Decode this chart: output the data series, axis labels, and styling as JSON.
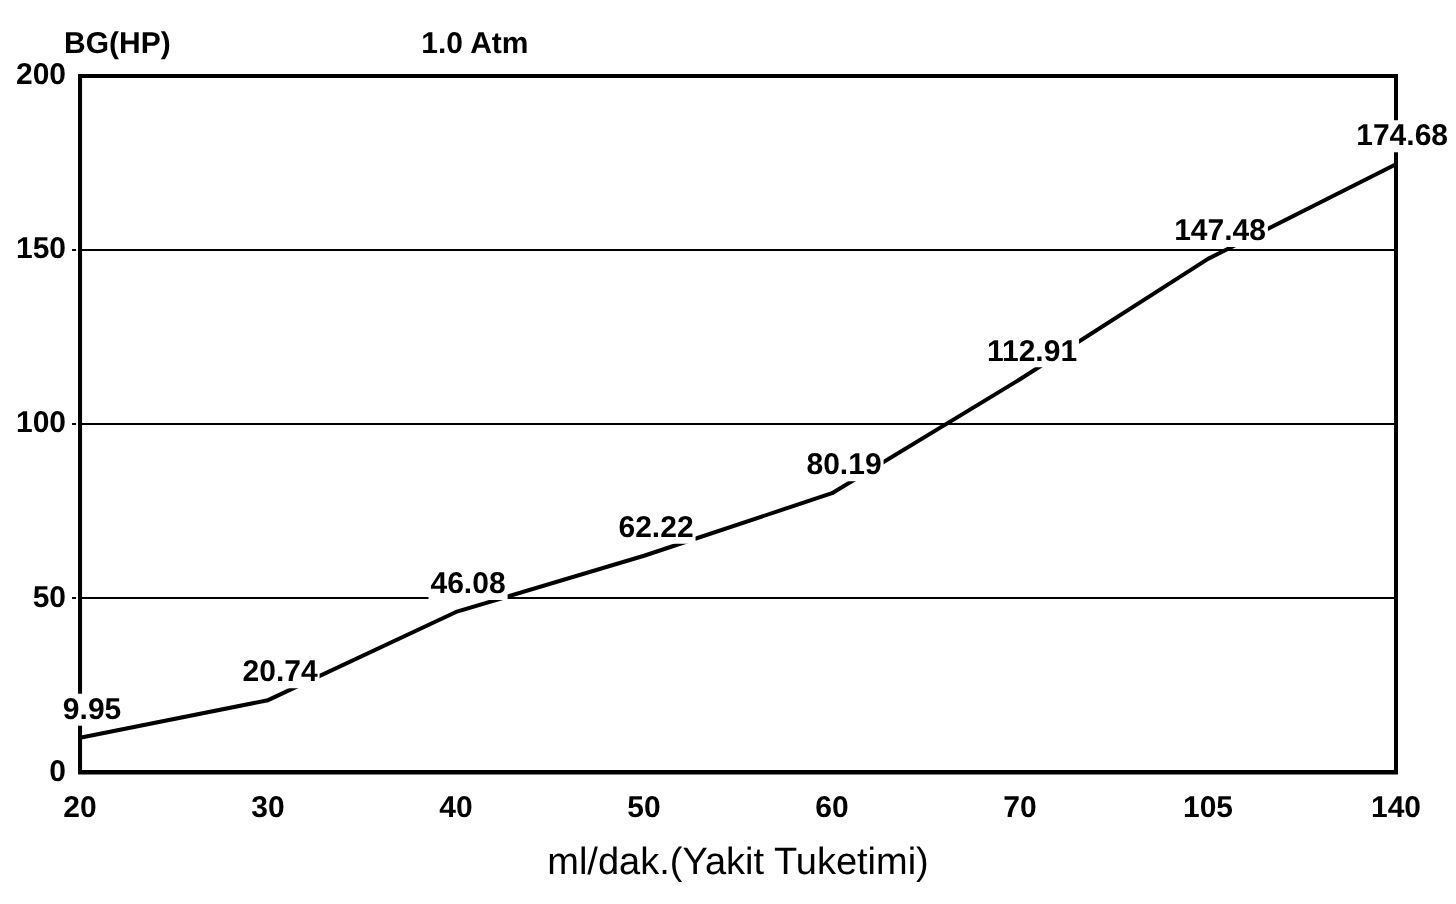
{
  "chart_data": {
    "type": "line",
    "title": "1.0 Atm",
    "xlabel": "ml/dak.(Yakit Tuketimi)",
    "ylabel": "BG(HP)",
    "categories": [
      "20",
      "30",
      "40",
      "50",
      "60",
      "70",
      "105",
      "140"
    ],
    "series": [
      {
        "color": "#000000",
        "values": [
          9.95,
          20.74,
          46.08,
          62.22,
          80.19,
          112.91,
          147.48,
          174.68
        ]
      }
    ],
    "ylim": [
      0,
      200
    ],
    "yticks": [
      0,
      50,
      100,
      150,
      200
    ],
    "grid": "y",
    "legend": false,
    "marker": "none",
    "line_style": "solid",
    "data_labels": true
  }
}
